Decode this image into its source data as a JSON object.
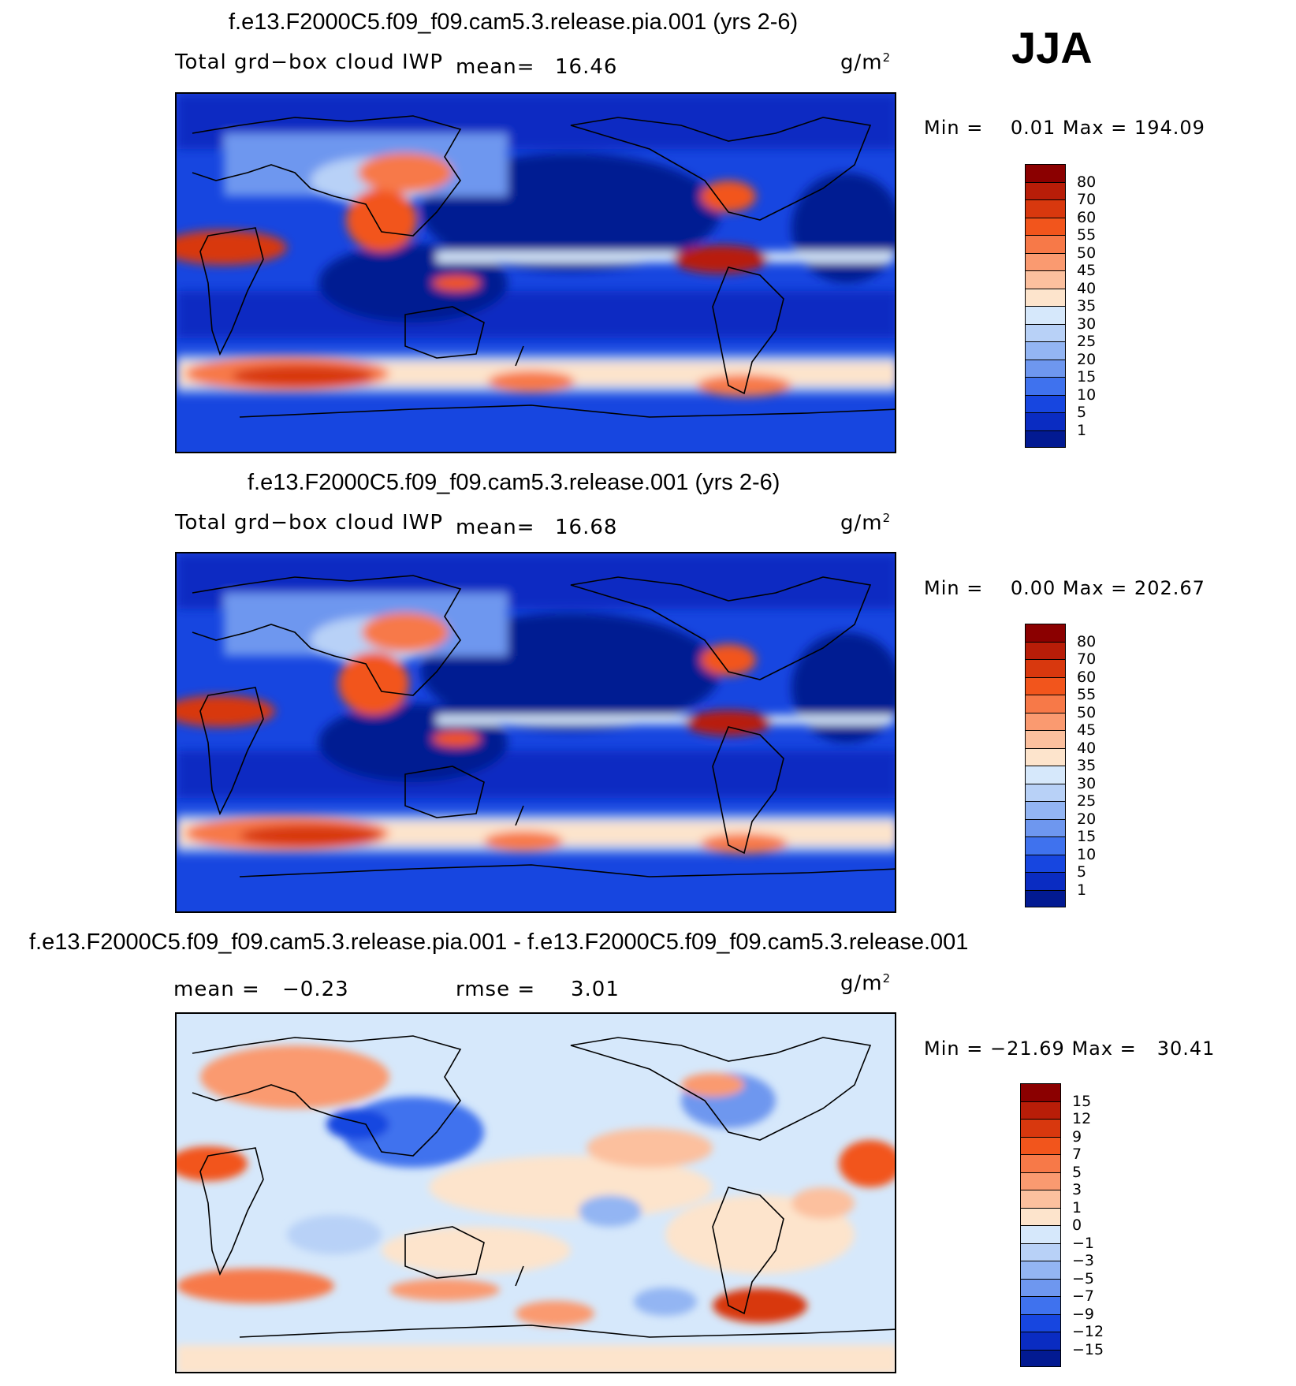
{
  "season": "JJA",
  "units": "g/m",
  "units_exp": "2",
  "panels": [
    {
      "title": "f.e13.F2000C5.f09_f09.cam5.3.release.pia.001 (yrs 2-6)",
      "variable": "Total grd−box cloud IWP",
      "mean_label": "mean=",
      "mean_value": "16.46",
      "min_label": "Min =",
      "min_value": "0.01",
      "max_label": "Max =",
      "max_value": "194.09",
      "levels": [
        "80",
        "70",
        "60",
        "55",
        "50",
        "45",
        "40",
        "35",
        "30",
        "25",
        "20",
        "15",
        "10",
        "5",
        "1"
      ],
      "colors": [
        "#8b0000",
        "#b81d08",
        "#d8380e",
        "#f2551c",
        "#f77948",
        "#fa9a70",
        "#fcc09e",
        "#fde4cc",
        "#d6e8fb",
        "#b8d1f7",
        "#93b5f3",
        "#6e97ef",
        "#3f72ee",
        "#1746e0",
        "#0a2cc2",
        "#021a92"
      ],
      "chart_data": {
        "type": "heatmap",
        "title": "f.e13.F2000C5.f09_f09.cam5.3.release.pia.001 (yrs 2-6)",
        "subtitle": "Total grd−box cloud IWP",
        "units": "g/m2",
        "mean": 16.46,
        "min": 0.01,
        "max": 194.09,
        "contour_levels": [
          1,
          5,
          10,
          15,
          20,
          25,
          30,
          35,
          40,
          45,
          50,
          55,
          60,
          70,
          80
        ]
      }
    },
    {
      "title": "f.e13.F2000C5.f09_f09.cam5.3.release.001 (yrs 2-6)",
      "variable": "Total grd−box cloud IWP",
      "mean_label": "mean=",
      "mean_value": "16.68",
      "min_label": "Min =",
      "min_value": "0.00",
      "max_label": "Max =",
      "max_value": "202.67",
      "levels": [
        "80",
        "70",
        "60",
        "55",
        "50",
        "45",
        "40",
        "35",
        "30",
        "25",
        "20",
        "15",
        "10",
        "5",
        "1"
      ],
      "colors": [
        "#8b0000",
        "#b81d08",
        "#d8380e",
        "#f2551c",
        "#f77948",
        "#fa9a70",
        "#fcc09e",
        "#fde4cc",
        "#d6e8fb",
        "#b8d1f7",
        "#93b5f3",
        "#6e97ef",
        "#3f72ee",
        "#1746e0",
        "#0a2cc2",
        "#021a92"
      ],
      "chart_data": {
        "type": "heatmap",
        "title": "f.e13.F2000C5.f09_f09.cam5.3.release.001 (yrs 2-6)",
        "subtitle": "Total grd−box cloud IWP",
        "units": "g/m2",
        "mean": 16.68,
        "min": 0.0,
        "max": 202.67,
        "contour_levels": [
          1,
          5,
          10,
          15,
          20,
          25,
          30,
          35,
          40,
          45,
          50,
          55,
          60,
          70,
          80
        ]
      }
    },
    {
      "title": "f.e13.F2000C5.f09_f09.cam5.3.release.pia.001 - f.e13.F2000C5.f09_f09.cam5.3.release.001",
      "mean_label": "mean =",
      "mean_value": "−0.23",
      "rmse_label": "rmse =",
      "rmse_value": "3.01",
      "min_label": "Min =",
      "min_value": "−21.69",
      "max_label": "Max =",
      "max_value": "30.41",
      "levels": [
        "15",
        "12",
        "9",
        "7",
        "5",
        "3",
        "1",
        "0",
        "−1",
        "−3",
        "−5",
        "−7",
        "−9",
        "−12",
        "−15"
      ],
      "colors": [
        "#8b0000",
        "#b81d08",
        "#d8380e",
        "#f2551c",
        "#f77948",
        "#fa9a70",
        "#fcc09e",
        "#fde4cc",
        "#d6e8fb",
        "#b8d1f7",
        "#93b5f3",
        "#6e97ef",
        "#3f72ee",
        "#1746e0",
        "#0a2cc2",
        "#021a92"
      ],
      "chart_data": {
        "type": "heatmap",
        "title": "f.e13.F2000C5.f09_f09.cam5.3.release.pia.001 - f.e13.F2000C5.f09_f09.cam5.3.release.001",
        "units": "g/m2",
        "mean": -0.23,
        "rmse": 3.01,
        "min": -21.69,
        "max": 30.41,
        "contour_levels": [
          -15,
          -12,
          -9,
          -7,
          -5,
          -3,
          -1,
          0,
          1,
          3,
          5,
          7,
          9,
          12,
          15
        ]
      }
    }
  ]
}
